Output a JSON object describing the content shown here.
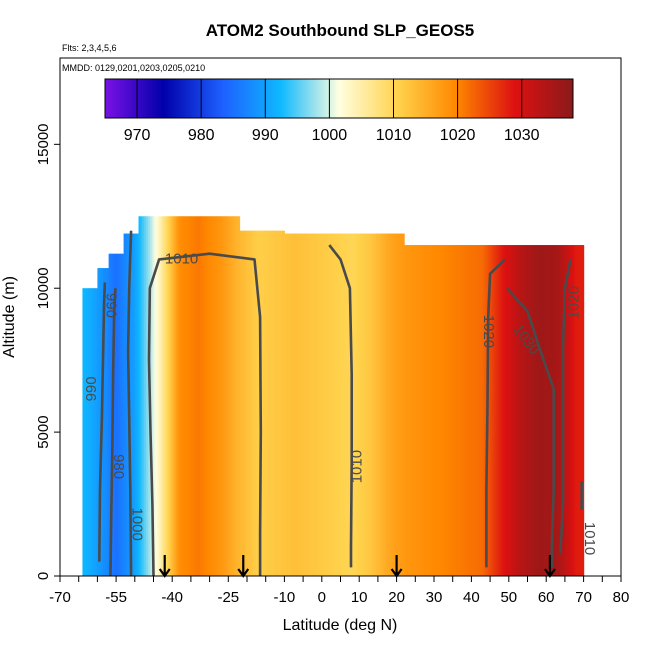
{
  "chart_data": {
    "type": "heatmap",
    "title": "ATOM2 Southbound SLP_GEOS5",
    "annotations": {
      "flights": "Flts: 2,3,4,5,6",
      "dates": "MMDD: 0129,0201,0203,0205,0210"
    },
    "xlabel": "Latitude (deg N)",
    "ylabel": "Altitude (m)",
    "xlim": [
      -70,
      80
    ],
    "ylim": [
      0,
      18000
    ],
    "x_ticks": [
      -70,
      -55,
      -40,
      -25,
      -10,
      0,
      10,
      20,
      30,
      40,
      50,
      60,
      70,
      80
    ],
    "y_ticks": [
      0,
      5000,
      10000,
      15000
    ],
    "colorbar": {
      "range": [
        965,
        1038
      ],
      "ticks": [
        970,
        980,
        990,
        1000,
        1010,
        1020,
        1030
      ],
      "colors": [
        "#7a11e6",
        "#0000aa",
        "#1e5fff",
        "#0eb8ff",
        "#ffffe0",
        "#ffd24c",
        "#ff8800",
        "#dd1111",
        "#8b1a1a"
      ]
    },
    "profile": [
      {
        "lat": -63,
        "slp": 992
      },
      {
        "lat": -58,
        "slp": 988
      },
      {
        "lat": -55,
        "slp": 985
      },
      {
        "lat": -50,
        "slp": 990
      },
      {
        "lat": -46,
        "slp": 998
      },
      {
        "lat": -43,
        "slp": 1005
      },
      {
        "lat": -38,
        "slp": 1019
      },
      {
        "lat": -33,
        "slp": 1021
      },
      {
        "lat": -27,
        "slp": 1018
      },
      {
        "lat": -22,
        "slp": 1014
      },
      {
        "lat": -17,
        "slp": 1011
      },
      {
        "lat": -12,
        "slp": 1012
      },
      {
        "lat": -7,
        "slp": 1013
      },
      {
        "lat": -2,
        "slp": 1012
      },
      {
        "lat": 3,
        "slp": 1011
      },
      {
        "lat": 8,
        "slp": 1010
      },
      {
        "lat": 13,
        "slp": 1012
      },
      {
        "lat": 18,
        "slp": 1016
      },
      {
        "lat": 23,
        "slp": 1018
      },
      {
        "lat": 28,
        "slp": 1019
      },
      {
        "lat": 33,
        "slp": 1020
      },
      {
        "lat": 38,
        "slp": 1021
      },
      {
        "lat": 43,
        "slp": 1022
      },
      {
        "lat": 48,
        "slp": 1028
      },
      {
        "lat": 53,
        "slp": 1033
      },
      {
        "lat": 58,
        "slp": 1036
      },
      {
        "lat": 63,
        "slp": 1035
      },
      {
        "lat": 68,
        "slp": 1028
      }
    ],
    "altitude_ceiling": [
      {
        "from": -64,
        "to": -60,
        "alt": 10000
      },
      {
        "from": -60,
        "to": -57,
        "alt": 10700
      },
      {
        "from": -57,
        "to": -53,
        "alt": 11200
      },
      {
        "from": -53,
        "to": -49,
        "alt": 11900
      },
      {
        "from": -49,
        "to": -22,
        "alt": 12500
      },
      {
        "from": -22,
        "to": -10,
        "alt": 12000
      },
      {
        "from": -10,
        "to": 22,
        "alt": 11900
      },
      {
        "from": 22,
        "to": 36,
        "alt": 11500
      },
      {
        "from": 36,
        "to": 70,
        "alt": 11500
      }
    ],
    "contours": [
      {
        "label": "980",
        "points": [
          [
            -56.5,
            0
          ],
          [
            -56.3,
            2000
          ],
          [
            -56.0,
            4500
          ],
          [
            -55.8,
            7000
          ],
          [
            -55.5,
            9200
          ],
          [
            -55.2,
            10000
          ]
        ]
      },
      {
        "label": "990",
        "points": [
          [
            -59.5,
            500
          ],
          [
            -59.3,
            3000
          ],
          [
            -58.8,
            5500
          ],
          [
            -58.5,
            7500
          ],
          [
            -58.2,
            9500
          ],
          [
            -58.0,
            10200
          ]
        ]
      },
      {
        "label": "1000",
        "points": [
          [
            -51,
            0
          ],
          [
            -51.2,
            3000
          ],
          [
            -51.5,
            5500
          ],
          [
            -51.8,
            7800
          ],
          [
            -51.5,
            10000
          ],
          [
            -51.0,
            12000
          ]
        ]
      },
      {
        "label": "1010",
        "points": [
          [
            -45,
            0
          ],
          [
            -45.3,
            2500
          ],
          [
            -45.8,
            5000
          ],
          [
            -46.2,
            7500
          ],
          [
            -46.0,
            10000
          ],
          [
            -43.5,
            11000
          ],
          [
            -30,
            11200
          ],
          [
            -18,
            11000
          ],
          [
            -16.5,
            9000
          ],
          [
            -16.3,
            5000
          ],
          [
            -16.5,
            1500
          ],
          [
            -16.5,
            0
          ]
        ]
      },
      {
        "label": "1010",
        "points": [
          [
            2,
            11500
          ],
          [
            5,
            11000
          ],
          [
            7.5,
            10000
          ],
          [
            8.0,
            7000
          ],
          [
            8.0,
            4000
          ],
          [
            7.8,
            1000
          ],
          [
            7.8,
            300
          ]
        ]
      },
      {
        "label": "1020",
        "points": [
          [
            49,
            11000
          ],
          [
            45,
            10500
          ],
          [
            44.5,
            9000
          ],
          [
            44.3,
            6000
          ],
          [
            44.0,
            3000
          ],
          [
            44.0,
            300
          ]
        ]
      },
      {
        "label": "1030",
        "points": [
          [
            49.5,
            10000
          ],
          [
            55,
            9200
          ],
          [
            58,
            8000
          ],
          [
            62,
            6500
          ],
          [
            62,
            3000
          ],
          [
            61.5,
            1000
          ],
          [
            61.5,
            300
          ]
        ]
      },
      {
        "label": "1020",
        "points": [
          [
            66.5,
            11000
          ],
          [
            65,
            10000
          ],
          [
            64.5,
            8000
          ],
          [
            64.5,
            5000
          ],
          [
            64.5,
            2500
          ],
          [
            63.8,
            800
          ]
        ]
      },
      {
        "label": "1010",
        "points": [
          [
            69.5,
            3300
          ],
          [
            69.5,
            2300
          ]
        ]
      }
    ],
    "contour_label_points": [
      {
        "text": "1010",
        "lat": -37.5,
        "alt": 11000,
        "rotate": 0
      },
      {
        "text": "1010",
        "lat": 9.5,
        "alt": 3800,
        "rotate": -90
      },
      {
        "text": "1020",
        "lat": 44.5,
        "alt": 8500,
        "rotate": 90
      },
      {
        "text": "1030",
        "lat": 54.5,
        "alt": 8200,
        "rotate": 52
      },
      {
        "text": "1020",
        "lat": 67.5,
        "alt": 9500,
        "rotate": -90
      },
      {
        "text": "1010",
        "lat": 71.5,
        "alt": 1300,
        "rotate": 90
      },
      {
        "text": "1000",
        "lat": -49.5,
        "alt": 1800,
        "rotate": 90
      },
      {
        "text": "990",
        "lat": -61.5,
        "alt": 6500,
        "rotate": -90
      },
      {
        "text": "980",
        "lat": -54.5,
        "alt": 3800,
        "rotate": 90
      },
      {
        "text": "990",
        "lat": -56.5,
        "alt": 9400,
        "rotate": 90
      }
    ],
    "arrow_latitudes": [
      -42,
      -21,
      20,
      61
    ],
    "grid": false,
    "legend": "colorbar top"
  }
}
